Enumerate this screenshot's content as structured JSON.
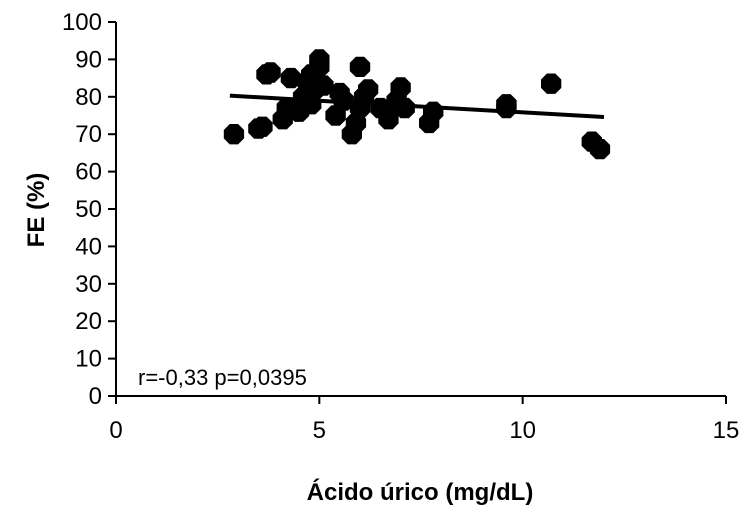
{
  "chart_data": {
    "type": "scatter",
    "xlabel": "Ácido úrico (mg/dL)",
    "ylabel": "FE (%)",
    "xlim": [
      0,
      15
    ],
    "ylim": [
      0,
      100
    ],
    "xticks": [
      0,
      5,
      10,
      15
    ],
    "yticks": [
      0,
      10,
      20,
      30,
      40,
      50,
      60,
      70,
      80,
      90,
      100
    ],
    "grid": false,
    "annotation": "r=-0,33  p=0,0395",
    "point_color": "#000000",
    "points": [
      {
        "x": 2.9,
        "y": 70
      },
      {
        "x": 3.5,
        "y": 71.5
      },
      {
        "x": 3.6,
        "y": 72
      },
      {
        "x": 3.7,
        "y": 86
      },
      {
        "x": 3.8,
        "y": 86.5
      },
      {
        "x": 4.1,
        "y": 74
      },
      {
        "x": 4.2,
        "y": 77
      },
      {
        "x": 4.3,
        "y": 85
      },
      {
        "x": 4.5,
        "y": 76
      },
      {
        "x": 4.6,
        "y": 80
      },
      {
        "x": 4.7,
        "y": 84
      },
      {
        "x": 4.8,
        "y": 78
      },
      {
        "x": 4.8,
        "y": 86
      },
      {
        "x": 4.9,
        "y": 82
      },
      {
        "x": 5.0,
        "y": 88
      },
      {
        "x": 5.0,
        "y": 90
      },
      {
        "x": 5.1,
        "y": 83
      },
      {
        "x": 5.4,
        "y": 75
      },
      {
        "x": 5.5,
        "y": 81
      },
      {
        "x": 5.6,
        "y": 79
      },
      {
        "x": 5.8,
        "y": 70
      },
      {
        "x": 5.9,
        "y": 73
      },
      {
        "x": 6.0,
        "y": 77
      },
      {
        "x": 6.0,
        "y": 88
      },
      {
        "x": 6.1,
        "y": 80
      },
      {
        "x": 6.2,
        "y": 82
      },
      {
        "x": 6.5,
        "y": 77
      },
      {
        "x": 6.7,
        "y": 74
      },
      {
        "x": 6.9,
        "y": 79
      },
      {
        "x": 7.0,
        "y": 82.5
      },
      {
        "x": 7.1,
        "y": 77
      },
      {
        "x": 7.7,
        "y": 73
      },
      {
        "x": 7.8,
        "y": 76
      },
      {
        "x": 9.6,
        "y": 78
      },
      {
        "x": 9.6,
        "y": 77
      },
      {
        "x": 10.7,
        "y": 83.5
      },
      {
        "x": 11.7,
        "y": 68
      },
      {
        "x": 11.9,
        "y": 66
      }
    ],
    "trendline": {
      "x": [
        2.8,
        12.0
      ],
      "y": [
        80.3,
        74.6
      ]
    }
  }
}
